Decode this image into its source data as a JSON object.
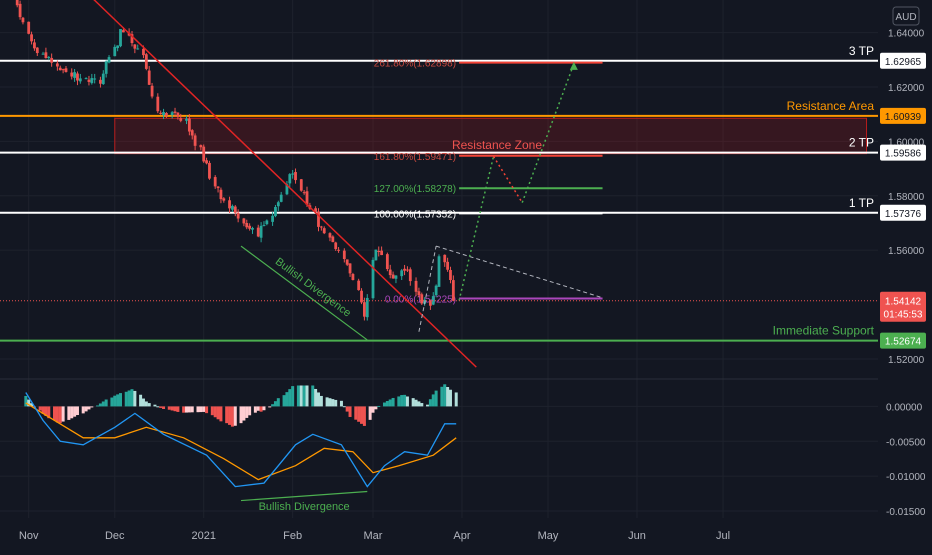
{
  "currency_label": "AUD",
  "colors": {
    "background": "#131722",
    "up": "#26a69a",
    "down": "#ef5350",
    "trendline": "#e02424",
    "resistance": "#ff9800",
    "support": "#4caf50",
    "tp": "#ffffff",
    "macd_line": "#2196f3",
    "signal_line": "#ff9800",
    "fib_target": "#b71c1c",
    "zone_border": "#b71c1c",
    "current_price": "#ef5350"
  },
  "levels": [
    {
      "id": "tp3",
      "value": 1.62965,
      "value_label": "1.62965",
      "label": "3 TP",
      "color": "#ffffff",
      "text_color": "#ffffff"
    },
    {
      "id": "resistance-area",
      "value": 1.60939,
      "value_label": "1.60939",
      "label": "Resistance Area",
      "color": "#ff9800",
      "text_color": "#ff9800"
    },
    {
      "id": "tp2",
      "value": 1.59586,
      "value_label": "1.59586",
      "label": "2 TP",
      "color": "#ffffff",
      "text_color": "#ffffff"
    },
    {
      "id": "tp1",
      "value": 1.57376,
      "value_label": "1.57376",
      "label": "1 TP",
      "color": "#ffffff",
      "text_color": "#ffffff"
    },
    {
      "id": "immediate-support",
      "value": 1.52674,
      "value_label": "1.52674",
      "label": "Immediate Support",
      "color": "#4caf50",
      "text_color": "#4caf50"
    }
  ],
  "current_price": {
    "value": 1.54142,
    "value_label": "1.54142",
    "timer": "01:45:53"
  },
  "annotations": {
    "resistance_zone": "Resistance Zone",
    "bullish_divergence_price": "Bullish Divergence",
    "bullish_divergence_macd": "Bullish Divergence"
  },
  "fib_levels": [
    {
      "label": "261.80%(1.62898)",
      "value": 1.62898
    },
    {
      "label": "161.80%(1.59471)",
      "value": 1.59471
    },
    {
      "label": "127.00%(1.58278)",
      "value": 1.58278
    },
    {
      "label": "100.00%(1.57352)",
      "value": 1.57352
    },
    {
      "label": "0.00%(1.54225)",
      "value": 1.54225
    }
  ],
  "chart_data": [
    {
      "type": "candlestick",
      "ylim": [
        1.513,
        1.652
      ],
      "y_ticks": [
        "1.64000",
        "1.62000",
        "1.60000",
        "1.58000",
        "1.56000",
        "1.52000"
      ],
      "y_tick_values": [
        1.64,
        1.62,
        1.6,
        1.58,
        1.56,
        1.52
      ],
      "x_tick_labels": [
        "Nov",
        "Dec",
        "2021",
        "Feb",
        "Mar",
        "Apr",
        "May",
        "Jun",
        "Jul"
      ],
      "x_tick_dates": [
        "2020-11-01",
        "2020-12-01",
        "2021-01-01",
        "2021-02-01",
        "2021-03-01",
        "2021-04-01",
        "2021-05-01",
        "2021-06-01",
        "2021-07-01"
      ],
      "x_range": [
        "2020-10-22",
        "2021-08-24"
      ],
      "waypoints": [
        {
          "date": "2020-10-22",
          "price": 1.658
        },
        {
          "date": "2020-10-27",
          "price": 1.652
        },
        {
          "date": "2020-11-03",
          "price": 1.635
        },
        {
          "date": "2020-11-10",
          "price": 1.628
        },
        {
          "date": "2020-11-18",
          "price": 1.624
        },
        {
          "date": "2020-11-26",
          "price": 1.622
        },
        {
          "date": "2020-12-04",
          "price": 1.641
        },
        {
          "date": "2020-12-10",
          "price": 1.634
        },
        {
          "date": "2020-12-16",
          "price": 1.61
        },
        {
          "date": "2020-12-25",
          "price": 1.609
        },
        {
          "date": "2021-01-01",
          "price": 1.595
        },
        {
          "date": "2021-01-05",
          "price": 1.584
        },
        {
          "date": "2021-01-13",
          "price": 1.572
        },
        {
          "date": "2021-01-20",
          "price": 1.566
        },
        {
          "date": "2021-01-26",
          "price": 1.574
        },
        {
          "date": "2021-02-01",
          "price": 1.59
        },
        {
          "date": "2021-02-05",
          "price": 1.58
        },
        {
          "date": "2021-02-12",
          "price": 1.567
        },
        {
          "date": "2021-02-18",
          "price": 1.56
        },
        {
          "date": "2021-02-24",
          "price": 1.544
        },
        {
          "date": "2021-02-27",
          "price": 1.533
        },
        {
          "date": "2021-03-01",
          "price": 1.556
        },
        {
          "date": "2021-03-03",
          "price": 1.562
        },
        {
          "date": "2021-03-08",
          "price": 1.548
        },
        {
          "date": "2021-03-13",
          "price": 1.553
        },
        {
          "date": "2021-03-18",
          "price": 1.541
        },
        {
          "date": "2021-03-21",
          "price": 1.54
        },
        {
          "date": "2021-03-23",
          "price": 1.545
        },
        {
          "date": "2021-03-25",
          "price": 1.558
        },
        {
          "date": "2021-03-28",
          "price": 1.552
        },
        {
          "date": "2021-03-30",
          "price": 1.5414
        }
      ],
      "resistance_zone": {
        "from": "2020-12-01",
        "to": "2021-08-20",
        "y_low": 1.5955,
        "y_high": 1.6085
      },
      "trendline": [
        {
          "date": "2020-11-15",
          "price": 1.661
        },
        {
          "date": "2021-04-06",
          "price": 1.517
        }
      ],
      "divergence_price": [
        {
          "date": "2021-01-14",
          "price": 1.5615
        },
        {
          "date": "2021-02-27",
          "price": 1.527
        }
      ],
      "projection_up": [
        {
          "date": "2021-03-31",
          "price": 1.5415
        },
        {
          "date": "2021-04-12",
          "price": 1.5945
        },
        {
          "date": "2021-04-22",
          "price": 1.5775
        },
        {
          "date": "2021-05-10",
          "price": 1.6285
        }
      ],
      "triangle": [
        [
          {
            "date": "2021-03-23",
            "price": 1.5615
          },
          {
            "date": "2021-05-20",
            "price": 1.5425
          }
        ],
        [
          {
            "date": "2021-03-17",
            "price": 1.53
          },
          {
            "date": "2021-03-23",
            "price": 1.5615
          }
        ]
      ],
      "fib_line_range": [
        "2021-03-31",
        "2021-05-20"
      ],
      "macd": {
        "ylim": [
          -0.016,
          0.0035
        ],
        "y_ticks": [
          "0.00000",
          "-0.00500",
          "-0.01000",
          "-0.01500"
        ],
        "y_tick_values": [
          0,
          -0.005,
          -0.01,
          -0.015
        ],
        "macd_points": [
          {
            "date": "2020-10-31",
            "value": 0.002
          },
          {
            "date": "2020-11-06",
            "value": -0.002
          },
          {
            "date": "2020-11-12",
            "value": -0.005
          },
          {
            "date": "2020-11-20",
            "value": -0.0055
          },
          {
            "date": "2020-12-01",
            "value": -0.003
          },
          {
            "date": "2020-12-08",
            "value": -0.001
          },
          {
            "date": "2020-12-18",
            "value": -0.004
          },
          {
            "date": "2021-01-02",
            "value": -0.007
          },
          {
            "date": "2021-01-12",
            "value": -0.0115
          },
          {
            "date": "2021-01-22",
            "value": -0.011
          },
          {
            "date": "2021-02-02",
            "value": -0.0055
          },
          {
            "date": "2021-02-08",
            "value": -0.004
          },
          {
            "date": "2021-02-18",
            "value": -0.0055
          },
          {
            "date": "2021-02-27",
            "value": -0.0115
          },
          {
            "date": "2021-03-05",
            "value": -0.0085
          },
          {
            "date": "2021-03-12",
            "value": -0.0065
          },
          {
            "date": "2021-03-20",
            "value": -0.007
          },
          {
            "date": "2021-03-26",
            "value": -0.0025
          },
          {
            "date": "2021-03-30",
            "value": -0.0025
          }
        ],
        "signal_points": [
          {
            "date": "2020-10-31",
            "value": 0.0005
          },
          {
            "date": "2020-11-10",
            "value": -0.002
          },
          {
            "date": "2020-11-20",
            "value": -0.0045
          },
          {
            "date": "2020-12-01",
            "value": -0.0045
          },
          {
            "date": "2020-12-12",
            "value": -0.003
          },
          {
            "date": "2020-12-25",
            "value": -0.0045
          },
          {
            "date": "2021-01-08",
            "value": -0.0075
          },
          {
            "date": "2021-01-20",
            "value": -0.0105
          },
          {
            "date": "2021-02-02",
            "value": -0.0085
          },
          {
            "date": "2021-02-12",
            "value": -0.006
          },
          {
            "date": "2021-02-22",
            "value": -0.0065
          },
          {
            "date": "2021-03-01",
            "value": -0.0095
          },
          {
            "date": "2021-03-10",
            "value": -0.0085
          },
          {
            "date": "2021-03-22",
            "value": -0.007
          },
          {
            "date": "2021-03-30",
            "value": -0.0045
          }
        ],
        "divergence": [
          {
            "date": "2021-01-14",
            "value": -0.0135
          },
          {
            "date": "2021-02-27",
            "value": -0.0122
          }
        ]
      }
    }
  ]
}
